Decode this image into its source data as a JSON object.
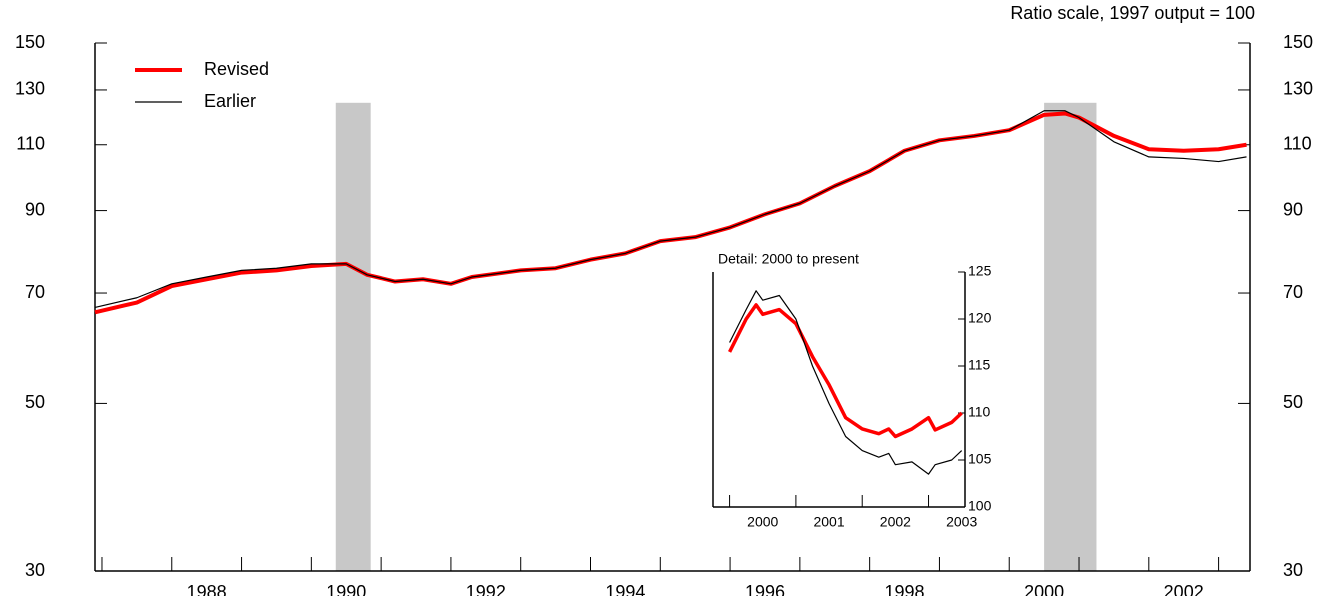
{
  "chart_data": [
    {
      "type": "line",
      "subtitle": "Ratio scale, 1997 output = 100",
      "log_scale": true,
      "x": [
        1986.9,
        1987.5,
        1988.0,
        1988.5,
        1989.0,
        1989.5,
        1990.0,
        1990.5,
        1990.8,
        1991.2,
        1991.6,
        1992.0,
        1992.3,
        1993.0,
        1993.5,
        1994.0,
        1994.5,
        1995.0,
        1995.5,
        1996.0,
        1996.5,
        1997.0,
        1997.5,
        1998.0,
        1998.5,
        1999.0,
        1999.5,
        2000.0,
        2000.5,
        2000.8,
        2001.0,
        2001.5,
        2002.0,
        2002.5,
        2003.0,
        2003.4
      ],
      "series": [
        {
          "name": "Revised",
          "color": "#ff0000",
          "values": [
            66,
            68,
            71.5,
            73,
            74.5,
            75,
            76,
            76.5,
            74,
            72.5,
            73,
            72,
            73.5,
            75,
            75.5,
            77.5,
            79,
            82,
            83,
            85.5,
            89,
            92,
            97,
            101.5,
            108,
            111.5,
            113,
            115,
            120.5,
            121,
            119.5,
            113,
            108.5,
            108,
            108.5,
            110
          ]
        },
        {
          "name": "Earlier",
          "color": "#000000",
          "values": [
            67,
            69,
            72,
            73.5,
            75,
            75.5,
            76.5,
            76.5,
            74,
            72.5,
            73,
            72,
            73.5,
            75,
            75.5,
            77.5,
            79,
            82,
            83,
            85.5,
            89,
            92,
            97,
            101.5,
            108,
            111.5,
            113,
            115,
            122,
            122,
            119.5,
            111,
            106,
            105.5,
            104.5,
            106
          ]
        }
      ],
      "shaded_periods": [
        [
          1990.35,
          1990.85
        ],
        [
          2000.5,
          2001.25
        ]
      ],
      "xlim": [
        1986.9,
        2003.45
      ],
      "xticks": [
        1988,
        1990,
        1992,
        1994,
        1996,
        1998,
        2000,
        2002
      ],
      "ylim": [
        30,
        150
      ],
      "yticks": [
        30,
        50,
        70,
        90,
        110,
        130,
        150
      ],
      "legend": "upper left"
    },
    {
      "type": "line",
      "title": "Detail: 2000 to present",
      "x": [
        2000.0,
        2000.25,
        2000.4,
        2000.5,
        2000.75,
        2001.0,
        2001.25,
        2001.5,
        2001.75,
        2002.0,
        2002.25,
        2002.4,
        2002.5,
        2002.75,
        2003.0,
        2003.1,
        2003.35,
        2003.5
      ],
      "series": [
        {
          "name": "Revised",
          "color": "#ff0000",
          "values": [
            116.5,
            120,
            121.5,
            120.5,
            121,
            119.5,
            116,
            113,
            109.5,
            108.3,
            107.8,
            108.3,
            107.5,
            108.3,
            109.5,
            108.2,
            109,
            110
          ]
        },
        {
          "name": "Earlier",
          "color": "#000000",
          "values": [
            117.5,
            121,
            123,
            122,
            122.5,
            120,
            115,
            111,
            107.5,
            106,
            105.3,
            105.7,
            104.5,
            104.8,
            103.5,
            104.5,
            105,
            106
          ]
        }
      ],
      "xlim": [
        1999.75,
        2003.55
      ],
      "xticks": [
        2000,
        2001,
        2002,
        2003
      ],
      "ylim": [
        100,
        125
      ],
      "yticks": [
        100,
        105,
        110,
        115,
        120,
        125
      ]
    }
  ]
}
